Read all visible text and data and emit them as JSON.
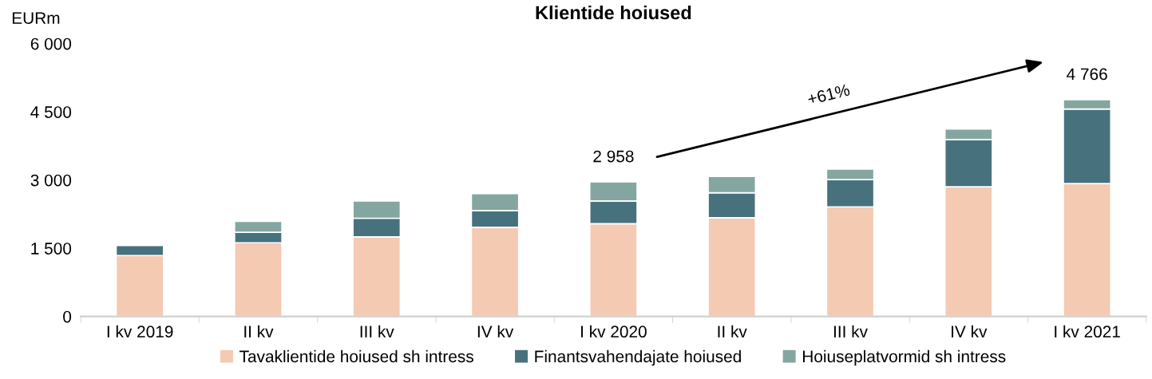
{
  "chart_data": {
    "type": "bar",
    "title": "Klientide hoiused",
    "ylabel": "EURm",
    "categories": [
      "I kv 2019",
      "II kv",
      "III kv",
      "IV kv",
      "I kv 2020",
      "II kv",
      "III kv",
      "IV kv",
      "I kv 2021"
    ],
    "series": [
      {
        "name": "Tavaklientide hoiused sh intress",
        "color": "#f4cab3",
        "values": [
          1340,
          1620,
          1750,
          1960,
          2040,
          2170,
          2410,
          2850,
          2920
        ]
      },
      {
        "name": "Finantsvahendajate hoiused",
        "color": "#48717e",
        "values": [
          220,
          230,
          410,
          370,
          500,
          550,
          600,
          1040,
          1640
        ]
      },
      {
        "name": "Hoiuseplatvormid sh intress",
        "color": "#84a6a0",
        "values": [
          null,
          240,
          380,
          370,
          418,
          360,
          230,
          230,
          206
        ]
      }
    ],
    "stacked": true,
    "totals": [
      null,
      null,
      null,
      null,
      "2 958",
      null,
      null,
      null,
      "4 766"
    ],
    "annotations": [
      "+61%"
    ],
    "ylim": [
      0,
      6000
    ],
    "yticks": [
      0,
      {
        "value": 1500,
        "label": "1 500"
      },
      {
        "value": 3000,
        "label": "3 000"
      },
      {
        "value": 4500,
        "label": "4 500"
      },
      {
        "value": 6000,
        "label": "6 000"
      }
    ],
    "grid": false,
    "legend": "bottom"
  }
}
